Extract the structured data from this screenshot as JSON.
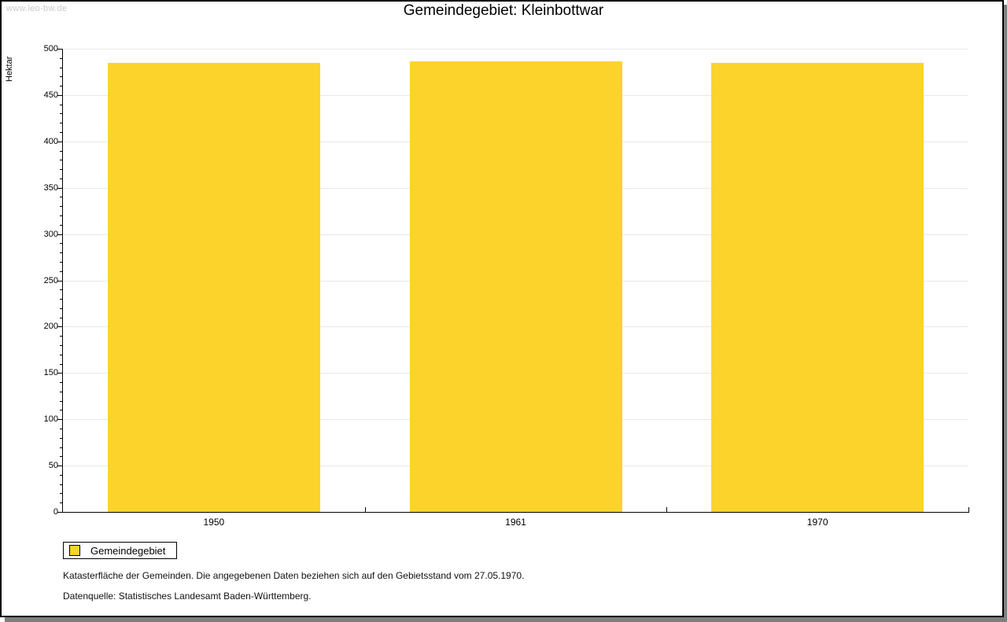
{
  "watermark": {
    "text": "www.leo-bw.de"
  },
  "title": "Gemeindegebiet: Kleinbottwar",
  "chart_data": {
    "type": "bar",
    "title": "Gemeindegebiet: Kleinbottwar",
    "categories": [
      "1950",
      "1961",
      "1970"
    ],
    "series": [
      {
        "name": "Gemeindegebiet",
        "values": [
          485,
          486,
          485
        ]
      }
    ],
    "xlabel": "",
    "ylabel": "Hektar",
    "ylim": [
      0,
      500
    ],
    "ytick_major": 50,
    "ytick_minor": 10,
    "grid": true,
    "legend_position": "bottom-left",
    "bar_color": "#fcd32b"
  },
  "legend": {
    "items": [
      {
        "label": "Gemeindegebiet",
        "color": "#fcd32b"
      }
    ]
  },
  "footer": {
    "line1": "Katasterfläche der Gemeinden. Die angegebenen Daten beziehen sich auf den Gebietsstand vom 27.05.1970.",
    "line2": "Datenquelle: Statistisches Landesamt Baden-Württemberg."
  },
  "colors": {
    "bar": "#fcd32b",
    "grid": "#e8e8e8",
    "axis": "#000000",
    "watermark": "#c9c9c9",
    "frame_shadow": "#7f7f7f"
  }
}
